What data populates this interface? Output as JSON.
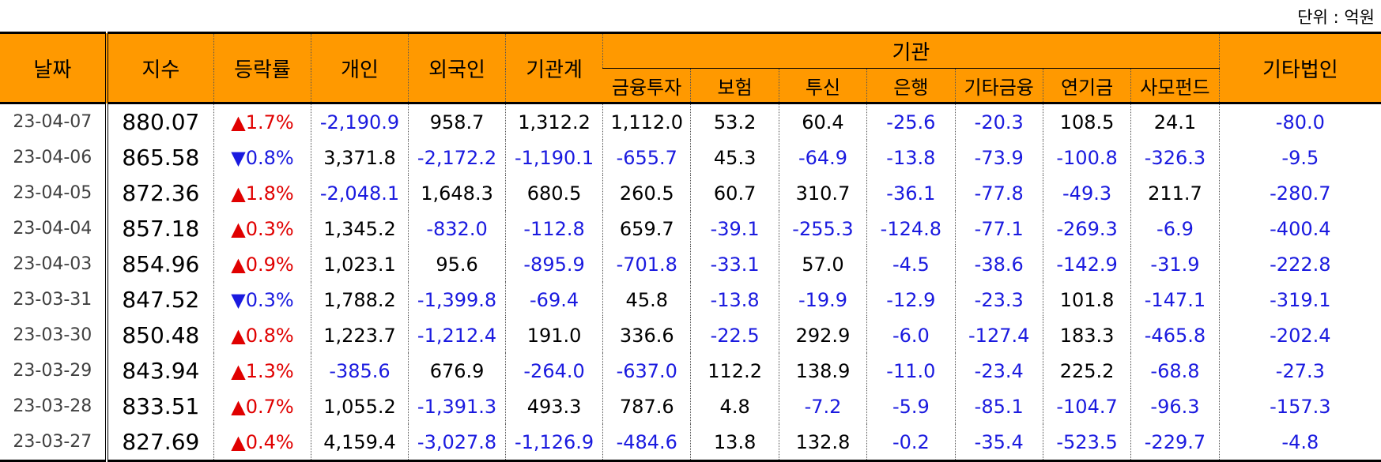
{
  "unit_label": "단위 : 억원",
  "headers": {
    "date": "날짜",
    "index": "지수",
    "change": "등락률",
    "individual": "개인",
    "foreign": "외국인",
    "institution_total": "기관계",
    "institution": "기관",
    "sub": [
      "금융투자",
      "보험",
      "투신",
      "은행",
      "기타금융",
      "연기금",
      "사모펀드"
    ],
    "other_corp": "기타법인"
  },
  "rows": [
    {
      "date": "23-04-07",
      "index": "880.07",
      "dir": "up",
      "change": "1.7%",
      "values": [
        "-2,190.9",
        "958.7",
        "1,312.2",
        "1,112.0",
        "53.2",
        "60.4",
        "-25.6",
        "-20.3",
        "108.5",
        "24.1",
        "-80.0"
      ]
    },
    {
      "date": "23-04-06",
      "index": "865.58",
      "dir": "down",
      "change": "0.8%",
      "values": [
        "3,371.8",
        "-2,172.2",
        "-1,190.1",
        "-655.7",
        "45.3",
        "-64.9",
        "-13.8",
        "-73.9",
        "-100.8",
        "-326.3",
        "-9.5"
      ]
    },
    {
      "date": "23-04-05",
      "index": "872.36",
      "dir": "up",
      "change": "1.8%",
      "values": [
        "-2,048.1",
        "1,648.3",
        "680.5",
        "260.5",
        "60.7",
        "310.7",
        "-36.1",
        "-77.8",
        "-49.3",
        "211.7",
        "-280.7"
      ]
    },
    {
      "date": "23-04-04",
      "index": "857.18",
      "dir": "up",
      "change": "0.3%",
      "values": [
        "1,345.2",
        "-832.0",
        "-112.8",
        "659.7",
        "-39.1",
        "-255.3",
        "-124.8",
        "-77.1",
        "-269.3",
        "-6.9",
        "-400.4"
      ]
    },
    {
      "date": "23-04-03",
      "index": "854.96",
      "dir": "up",
      "change": "0.9%",
      "values": [
        "1,023.1",
        "95.6",
        "-895.9",
        "-701.8",
        "-33.1",
        "57.0",
        "-4.5",
        "-38.6",
        "-142.9",
        "-31.9",
        "-222.8"
      ]
    },
    {
      "date": "23-03-31",
      "index": "847.52",
      "dir": "down",
      "change": "0.3%",
      "values": [
        "1,788.2",
        "-1,399.8",
        "-69.4",
        "45.8",
        "-13.8",
        "-19.9",
        "-12.9",
        "-23.3",
        "101.8",
        "-147.1",
        "-319.1"
      ]
    },
    {
      "date": "23-03-30",
      "index": "850.48",
      "dir": "up",
      "change": "0.8%",
      "values": [
        "1,223.7",
        "-1,212.4",
        "191.0",
        "336.6",
        "-22.5",
        "292.9",
        "-6.0",
        "-127.4",
        "183.3",
        "-465.8",
        "-202.4"
      ]
    },
    {
      "date": "23-03-29",
      "index": "843.94",
      "dir": "up",
      "change": "1.3%",
      "values": [
        "-385.6",
        "676.9",
        "-264.0",
        "-637.0",
        "112.2",
        "138.9",
        "-11.0",
        "-23.4",
        "225.2",
        "-68.8",
        "-27.3"
      ]
    },
    {
      "date": "23-03-28",
      "index": "833.51",
      "dir": "up",
      "change": "0.7%",
      "values": [
        "1,055.2",
        "-1,391.3",
        "493.3",
        "787.6",
        "4.8",
        "-7.2",
        "-5.9",
        "-85.1",
        "-104.7",
        "-96.3",
        "-157.3"
      ]
    },
    {
      "date": "23-03-27",
      "index": "827.69",
      "dir": "up",
      "change": "0.4%",
      "values": [
        "4,159.4",
        "-3,027.8",
        "-1,126.9",
        "-484.6",
        "13.8",
        "132.8",
        "-0.2",
        "-35.4",
        "-523.5",
        "-229.7",
        "-4.8"
      ]
    }
  ],
  "colors": {
    "header_bg": "#ff9900",
    "up": "#e00000",
    "down": "#1a1adf",
    "negative": "#1a1adf"
  }
}
